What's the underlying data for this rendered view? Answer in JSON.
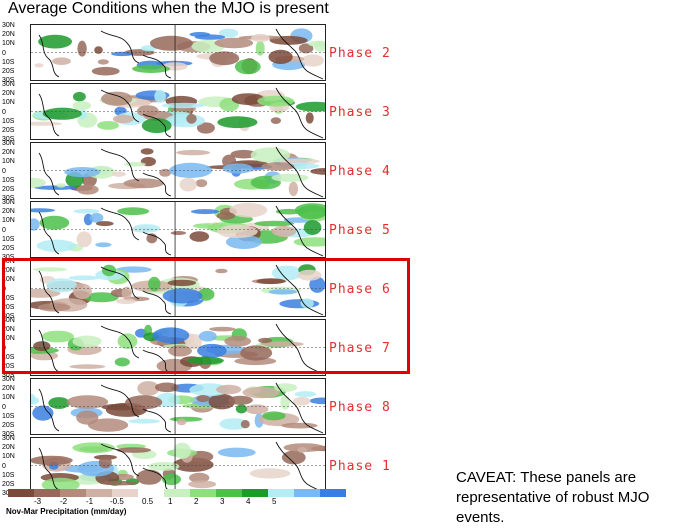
{
  "title": "Average Conditions when the MJO is present",
  "lat_labels": [
    "30N",
    "20N",
    "10N",
    "0",
    "10S",
    "20S",
    "30S"
  ],
  "panels": [
    {
      "label": "Phase 2"
    },
    {
      "label": "Phase 3"
    },
    {
      "label": "Phase 4"
    },
    {
      "label": "Phase 5"
    },
    {
      "label": "Phase 6"
    },
    {
      "label": "Phase 7"
    },
    {
      "label": "Phase 8"
    },
    {
      "label": "Phase 1"
    }
  ],
  "highlighted_phases": [
    "Phase 6",
    "Phase 7"
  ],
  "legend": {
    "caption": "Nov-Mar Precipitation (mm/day)",
    "ticks": [
      "-3",
      "-2",
      "-1",
      "-0.5",
      "0.5",
      "1",
      "2",
      "3",
      "4",
      "5"
    ],
    "colors": [
      "#7a4a3a",
      "#96695a",
      "#b38b7b",
      "#cfb0a2",
      "#e7d3ca",
      "#ffffff",
      "#c8f0c0",
      "#8ee07e",
      "#4cc04a",
      "#1c9a2a",
      "#b4ecf4",
      "#79b8f0",
      "#3a7fe0"
    ]
  },
  "caveat": "CAVEAT: These panels are representative of robust MJO events.",
  "colors": {
    "phase_label": "#e03030",
    "highlight_box": "#e00000"
  }
}
